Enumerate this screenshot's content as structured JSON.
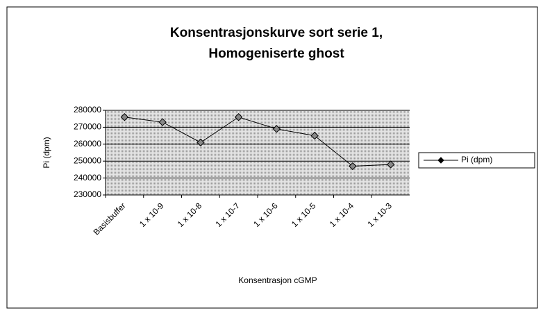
{
  "chart_data": {
    "type": "line",
    "title": [
      "Konsentrasjonskurve sort serie 1,",
      "Homogeniserte ghost"
    ],
    "x_label": "Konsentrasjon cGMP",
    "y_label": "Pi (dpm)",
    "categories": [
      "Basisbuffer",
      "1 x 10-9",
      "1 x 10-8",
      "1 x 10-7",
      "1 x 10-6",
      "1 x 10-5",
      "1 x 10-4",
      "1 x 10-3"
    ],
    "series": [
      {
        "name": "Pi (dpm)",
        "color": "#000000",
        "values": [
          276000,
          273000,
          261000,
          276000,
          269000,
          265000,
          247000,
          248000
        ]
      }
    ],
    "ylim": [
      230000,
      280000
    ],
    "yticks": [
      230000,
      240000,
      250000,
      260000,
      270000,
      280000
    ],
    "grid": true,
    "legend": "right"
  }
}
